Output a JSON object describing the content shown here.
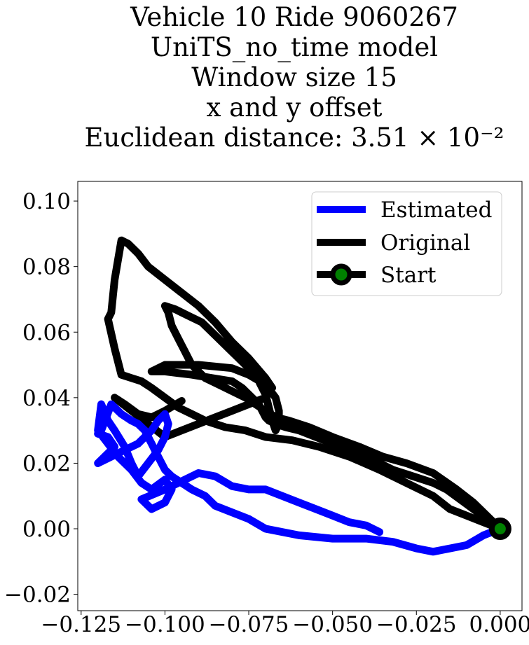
{
  "chart_data": {
    "type": "line",
    "title_lines": [
      "Vehicle 10 Ride 9060267",
      "UniTS_no_time model",
      "Window size 15",
      "x and y offset",
      "Euclidean distance: 3.51 × 10⁻²"
    ],
    "xlabel": "",
    "ylabel": "",
    "xlim": [
      -0.126,
      0.0065
    ],
    "ylim": [
      -0.025,
      0.106
    ],
    "x_ticks": [
      -0.125,
      -0.1,
      -0.075,
      -0.05,
      -0.025,
      0.0
    ],
    "x_tick_labels": [
      "−0.125",
      "−0.100",
      "−0.075",
      "−0.050",
      "−0.025",
      "0.000"
    ],
    "y_ticks": [
      -0.02,
      0.0,
      0.02,
      0.04,
      0.06,
      0.08,
      0.1
    ],
    "y_tick_labels": [
      "−0.02",
      "0.00",
      "0.02",
      "0.04",
      "0.06",
      "0.08",
      "0.10"
    ],
    "legend_position": "upper right",
    "series": [
      {
        "name": "Estimated",
        "color": "#0000ff",
        "x": [
          0.0,
          -0.005,
          -0.01,
          -0.015,
          -0.02,
          -0.025,
          -0.032,
          -0.04,
          -0.05,
          -0.06,
          -0.07,
          -0.075,
          -0.08,
          -0.085,
          -0.088,
          -0.092,
          -0.095,
          -0.098,
          -0.1,
          -0.102,
          -0.104,
          -0.106,
          -0.108,
          -0.11,
          -0.113,
          -0.116,
          -0.119,
          -0.12,
          -0.117,
          -0.115,
          -0.118,
          -0.12,
          -0.116,
          -0.112,
          -0.108,
          -0.104,
          -0.102,
          -0.1,
          -0.099,
          -0.1,
          -0.102,
          -0.105,
          -0.108,
          -0.11,
          -0.112,
          -0.115,
          -0.117,
          -0.119,
          -0.12,
          -0.117,
          -0.114,
          -0.11,
          -0.107,
          -0.104,
          -0.1,
          -0.098,
          -0.1,
          -0.104,
          -0.107,
          -0.1,
          -0.094,
          -0.09,
          -0.085,
          -0.08,
          -0.075,
          -0.07,
          -0.065,
          -0.06,
          -0.055,
          -0.05,
          -0.045,
          -0.04,
          -0.036
        ],
        "y": [
          0.0,
          -0.002,
          -0.005,
          -0.006,
          -0.007,
          -0.006,
          -0.004,
          -0.003,
          -0.003,
          -0.002,
          0.0,
          0.003,
          0.005,
          0.007,
          0.01,
          0.012,
          0.014,
          0.016,
          0.018,
          0.022,
          0.026,
          0.03,
          0.032,
          0.033,
          0.035,
          0.038,
          0.03,
          0.029,
          0.028,
          0.025,
          0.022,
          0.02,
          0.022,
          0.024,
          0.026,
          0.03,
          0.033,
          0.035,
          0.032,
          0.028,
          0.024,
          0.02,
          0.016,
          0.02,
          0.025,
          0.03,
          0.033,
          0.038,
          0.03,
          0.026,
          0.022,
          0.018,
          0.014,
          0.012,
          0.015,
          0.012,
          0.008,
          0.006,
          0.009,
          0.012,
          0.015,
          0.017,
          0.016,
          0.013,
          0.012,
          0.012,
          0.01,
          0.008,
          0.006,
          0.004,
          0.002,
          0.001,
          -0.001
        ]
      },
      {
        "name": "Original",
        "color": "#000000",
        "x": [
          0.0,
          -0.004,
          -0.008,
          -0.012,
          -0.016,
          -0.02,
          -0.026,
          -0.032,
          -0.038,
          -0.044,
          -0.05,
          -0.055,
          -0.06,
          -0.064,
          -0.067,
          -0.069,
          -0.07,
          -0.071,
          -0.072,
          -0.074,
          -0.077,
          -0.08,
          -0.086,
          -0.092,
          -0.1,
          -0.104,
          -0.1,
          -0.09,
          -0.08,
          -0.075,
          -0.07,
          -0.067,
          -0.066,
          -0.066,
          -0.067,
          -0.068,
          -0.069,
          -0.07,
          -0.072,
          -0.075,
          -0.079,
          -0.084,
          -0.089,
          -0.093,
          -0.097,
          -0.1,
          -0.099,
          -0.098,
          -0.096,
          -0.094,
          -0.092,
          -0.088,
          -0.084,
          -0.08,
          -0.076,
          -0.073,
          -0.07,
          -0.067,
          -0.063,
          -0.057,
          -0.05,
          -0.042,
          -0.035,
          -0.028,
          -0.02,
          -0.013,
          -0.008,
          -0.004,
          0.0,
          -0.005,
          -0.01,
          -0.015,
          -0.02,
          -0.028,
          -0.036,
          -0.045,
          -0.054,
          -0.062,
          -0.07,
          -0.076,
          -0.082,
          -0.088,
          -0.092,
          -0.096,
          -0.1,
          -0.104,
          -0.107,
          -0.11,
          -0.113,
          -0.115,
          -0.117,
          -0.116,
          -0.115,
          -0.113,
          -0.111,
          -0.108,
          -0.105,
          -0.1,
          -0.095,
          -0.09,
          -0.085,
          -0.08,
          -0.075,
          -0.07,
          -0.068,
          -0.07,
          -0.075,
          -0.08,
          -0.085,
          -0.09,
          -0.095,
          -0.1,
          -0.105,
          -0.11,
          -0.115,
          -0.112,
          -0.108,
          -0.104,
          -0.1,
          -0.095
        ],
        "y": [
          0.0,
          0.003,
          0.006,
          0.009,
          0.012,
          0.014,
          0.016,
          0.018,
          0.021,
          0.024,
          0.026,
          0.028,
          0.03,
          0.031,
          0.032,
          0.033,
          0.034,
          0.036,
          0.038,
          0.04,
          0.043,
          0.045,
          0.046,
          0.047,
          0.048,
          0.048,
          0.05,
          0.05,
          0.049,
          0.047,
          0.044,
          0.04,
          0.036,
          0.032,
          0.03,
          0.033,
          0.037,
          0.041,
          0.045,
          0.049,
          0.053,
          0.058,
          0.063,
          0.065,
          0.067,
          0.068,
          0.066,
          0.062,
          0.058,
          0.054,
          0.05,
          0.046,
          0.044,
          0.042,
          0.04,
          0.038,
          0.036,
          0.034,
          0.033,
          0.031,
          0.028,
          0.025,
          0.022,
          0.02,
          0.017,
          0.012,
          0.008,
          0.004,
          0.0,
          0.002,
          0.004,
          0.006,
          0.01,
          0.014,
          0.018,
          0.022,
          0.025,
          0.027,
          0.028,
          0.03,
          0.031,
          0.033,
          0.035,
          0.037,
          0.04,
          0.043,
          0.045,
          0.046,
          0.047,
          0.055,
          0.064,
          0.066,
          0.076,
          0.088,
          0.087,
          0.084,
          0.08,
          0.076,
          0.072,
          0.068,
          0.063,
          0.057,
          0.052,
          0.046,
          0.043,
          0.04,
          0.038,
          0.036,
          0.034,
          0.032,
          0.03,
          0.028,
          0.032,
          0.036,
          0.04,
          0.038,
          0.035,
          0.034,
          0.036,
          0.039
        ]
      },
      {
        "name": "Start",
        "color": "#000000",
        "marker_fill": "#008000",
        "x": [
          0.0
        ],
        "y": [
          0.0
        ]
      }
    ]
  }
}
